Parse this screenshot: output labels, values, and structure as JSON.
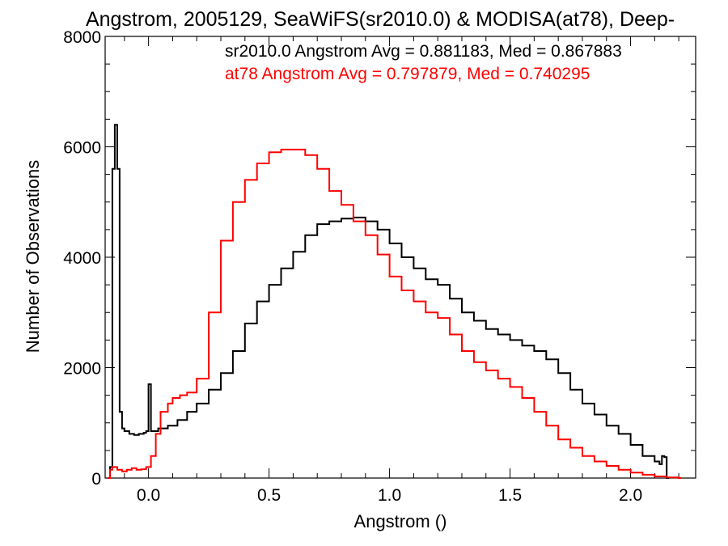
{
  "chart_data": {
    "type": "line",
    "title": "Angstrom, 2005129, SeaWiFS(sr2010.0) & MODISA(at78), Deep-",
    "xlabel": "Angstrom ()",
    "ylabel": "Number of Observations",
    "xlim": [
      -0.18,
      2.27
    ],
    "ylim": [
      0,
      8000
    ],
    "x_ticks": [
      0.0,
      0.5,
      1.0,
      1.5,
      2.0
    ],
    "x_tick_labels": [
      "0.0",
      "0.5",
      "1.0",
      "1.5",
      "2.0"
    ],
    "y_ticks": [
      0,
      2000,
      4000,
      6000,
      8000
    ],
    "y_tick_labels": [
      "0",
      "2000",
      "4000",
      "6000",
      "8000"
    ],
    "grid": false,
    "annotations": [
      {
        "text": "sr2010.0 Angstrom Avg = 0.881183, Med = 0.867883",
        "color": "#000000"
      },
      {
        "text": "at78 Angstrom Avg = 0.797879, Med = 0.740295",
        "color": "#ff0000"
      }
    ],
    "series": [
      {
        "color": "#000000",
        "step": true,
        "points": [
          [
            -0.17,
            0
          ],
          [
            -0.16,
            200
          ],
          [
            -0.15,
            5600
          ],
          [
            -0.14,
            6400
          ],
          [
            -0.13,
            5600
          ],
          [
            -0.12,
            1200
          ],
          [
            -0.11,
            900
          ],
          [
            -0.1,
            850
          ],
          [
            -0.08,
            800
          ],
          [
            -0.06,
            780
          ],
          [
            -0.04,
            800
          ],
          [
            -0.02,
            820
          ],
          [
            -0.01,
            850
          ],
          [
            0.0,
            1700
          ],
          [
            0.01,
            850
          ],
          [
            0.04,
            900
          ],
          [
            0.08,
            950
          ],
          [
            0.12,
            1050
          ],
          [
            0.16,
            1200
          ],
          [
            0.2,
            1350
          ],
          [
            0.25,
            1600
          ],
          [
            0.3,
            1900
          ],
          [
            0.35,
            2300
          ],
          [
            0.4,
            2800
          ],
          [
            0.45,
            3200
          ],
          [
            0.5,
            3500
          ],
          [
            0.55,
            3800
          ],
          [
            0.6,
            4100
          ],
          [
            0.65,
            4400
          ],
          [
            0.7,
            4600
          ],
          [
            0.75,
            4650
          ],
          [
            0.8,
            4700
          ],
          [
            0.85,
            4720
          ],
          [
            0.9,
            4650
          ],
          [
            0.95,
            4500
          ],
          [
            1.0,
            4250
          ],
          [
            1.05,
            4000
          ],
          [
            1.1,
            3800
          ],
          [
            1.15,
            3600
          ],
          [
            1.2,
            3500
          ],
          [
            1.25,
            3250
          ],
          [
            1.3,
            3000
          ],
          [
            1.35,
            2850
          ],
          [
            1.4,
            2700
          ],
          [
            1.45,
            2600
          ],
          [
            1.5,
            2500
          ],
          [
            1.55,
            2400
          ],
          [
            1.6,
            2300
          ],
          [
            1.65,
            2150
          ],
          [
            1.7,
            1900
          ],
          [
            1.75,
            1600
          ],
          [
            1.8,
            1350
          ],
          [
            1.85,
            1150
          ],
          [
            1.9,
            950
          ],
          [
            1.95,
            800
          ],
          [
            2.0,
            600
          ],
          [
            2.05,
            400
          ],
          [
            2.1,
            300
          ],
          [
            2.12,
            250
          ],
          [
            2.13,
            400
          ],
          [
            2.14,
            380
          ],
          [
            2.15,
            0
          ]
        ]
      },
      {
        "color": "#ff0000",
        "step": true,
        "points": [
          [
            -0.17,
            0
          ],
          [
            -0.16,
            150
          ],
          [
            -0.15,
            200
          ],
          [
            -0.13,
            150
          ],
          [
            -0.11,
            120
          ],
          [
            -0.09,
            150
          ],
          [
            -0.07,
            180
          ],
          [
            -0.05,
            150
          ],
          [
            -0.03,
            160
          ],
          [
            -0.01,
            200
          ],
          [
            0.01,
            400
          ],
          [
            0.03,
            800
          ],
          [
            0.05,
            1200
          ],
          [
            0.08,
            1350
          ],
          [
            0.1,
            1450
          ],
          [
            0.13,
            1500
          ],
          [
            0.16,
            1550
          ],
          [
            0.2,
            1800
          ],
          [
            0.25,
            3000
          ],
          [
            0.3,
            4300
          ],
          [
            0.35,
            5000
          ],
          [
            0.4,
            5400
          ],
          [
            0.45,
            5700
          ],
          [
            0.5,
            5900
          ],
          [
            0.55,
            5950
          ],
          [
            0.6,
            5950
          ],
          [
            0.65,
            5850
          ],
          [
            0.7,
            5600
          ],
          [
            0.75,
            5200
          ],
          [
            0.8,
            4950
          ],
          [
            0.85,
            4650
          ],
          [
            0.9,
            4400
          ],
          [
            0.95,
            4050
          ],
          [
            1.0,
            3650
          ],
          [
            1.05,
            3400
          ],
          [
            1.1,
            3200
          ],
          [
            1.15,
            3000
          ],
          [
            1.2,
            2900
          ],
          [
            1.25,
            2600
          ],
          [
            1.3,
            2300
          ],
          [
            1.35,
            2100
          ],
          [
            1.4,
            1950
          ],
          [
            1.45,
            1800
          ],
          [
            1.5,
            1650
          ],
          [
            1.55,
            1450
          ],
          [
            1.6,
            1200
          ],
          [
            1.65,
            950
          ],
          [
            1.7,
            700
          ],
          [
            1.75,
            550
          ],
          [
            1.8,
            400
          ],
          [
            1.85,
            300
          ],
          [
            1.9,
            220
          ],
          [
            1.95,
            150
          ],
          [
            2.0,
            100
          ],
          [
            2.05,
            60
          ],
          [
            2.1,
            30
          ],
          [
            2.15,
            10
          ],
          [
            2.2,
            0
          ]
        ]
      }
    ]
  }
}
